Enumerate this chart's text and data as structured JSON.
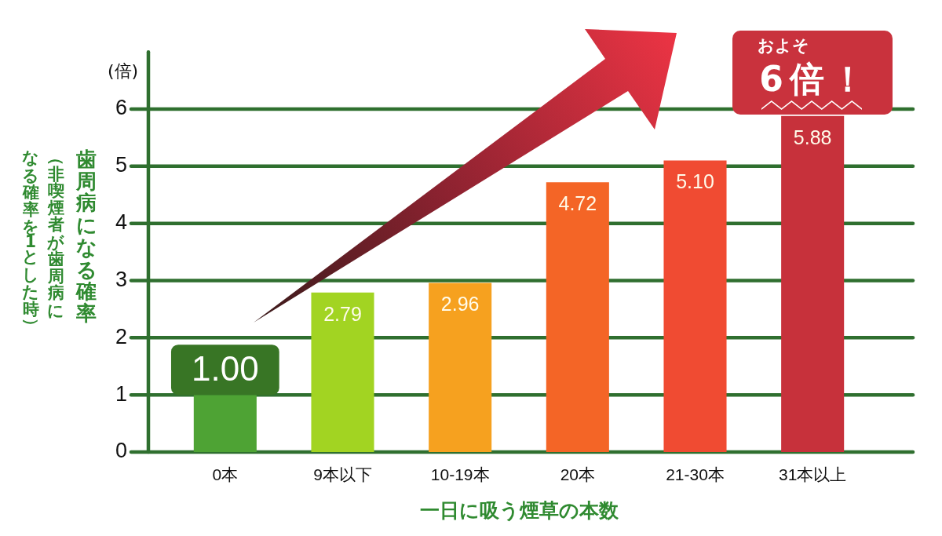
{
  "chart_data": {
    "type": "bar",
    "xlabel": "一日に吸う煙草の本数",
    "ylabel": "歯周病になる確率（非喫煙者が歯周病になる確率を1とした時）",
    "categories": [
      "0本",
      "9本以下",
      "10-19本",
      "20本",
      "21-30本",
      "31本以上"
    ],
    "values": [
      1.0,
      2.79,
      2.96,
      4.72,
      5.1,
      5.88
    ],
    "colors": [
      "#4ea334",
      "#a2d422",
      "#f6a11f",
      "#f46526",
      "#f04b32",
      "#c7313b"
    ],
    "value_labels": [
      "1.00",
      "2.79",
      "2.96",
      "4.72",
      "5.10",
      "5.88"
    ],
    "ylim": [
      0,
      7
    ],
    "yticks": [
      0,
      1,
      2,
      3,
      4,
      5,
      6
    ],
    "grid": "y",
    "annotations": [
      "(倍)",
      "およそ\n6倍！"
    ]
  }
}
